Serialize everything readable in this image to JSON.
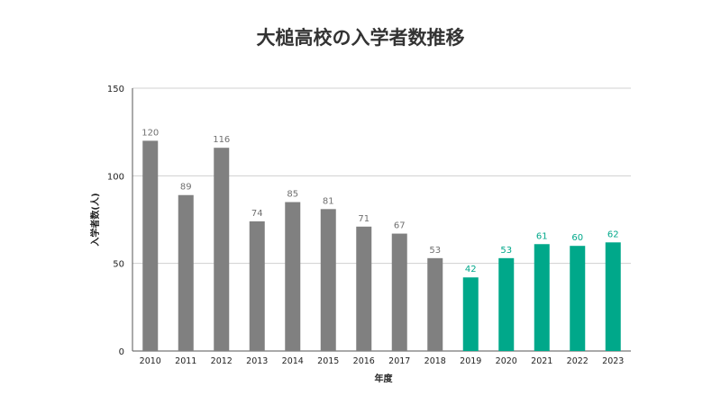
{
  "chart_data": {
    "type": "bar",
    "title": "大槌高校の入学者数推移",
    "xlabel": "年度",
    "ylabel": "入学者数(人)",
    "ylim": [
      0,
      150
    ],
    "yticks": [
      0,
      50,
      100,
      150
    ],
    "grid": true,
    "categories": [
      "2010",
      "2011",
      "2012",
      "2013",
      "2014",
      "2015",
      "2016",
      "2017",
      "2018",
      "2019",
      "2020",
      "2021",
      "2022",
      "2023"
    ],
    "values": [
      120,
      89,
      116,
      74,
      85,
      81,
      71,
      67,
      53,
      42,
      53,
      61,
      60,
      62
    ],
    "colors": {
      "bar_before": "#808080",
      "bar_after": "#00a88a",
      "label_before": "#707070",
      "label_after": "#00a88a",
      "grid": "#d0d0d0",
      "axis": "#555555",
      "text": "#222222"
    },
    "highlight_from": "2019"
  }
}
